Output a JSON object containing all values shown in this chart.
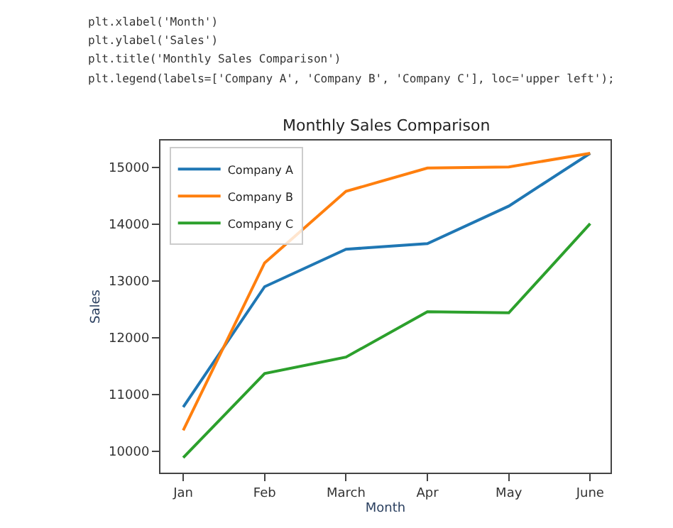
{
  "chart_data": {
    "type": "line",
    "title": "Monthly Sales Comparison",
    "xlabel": "Month",
    "ylabel": "Sales",
    "categories": [
      "Jan",
      "Feb",
      "March",
      "Apr",
      "May",
      "June"
    ],
    "series": [
      {
        "name": "Company A",
        "color": "#1f77b4",
        "values": [
          10780,
          12900,
          13560,
          13660,
          14320,
          15250
        ]
      },
      {
        "name": "Company B",
        "color": "#ff7f0e",
        "values": [
          10370,
          13320,
          14580,
          14990,
          15010,
          15250
        ]
      },
      {
        "name": "Company C",
        "color": "#2ca02c",
        "values": [
          9890,
          11370,
          11660,
          12460,
          12440,
          14010
        ]
      }
    ],
    "ylim": [
      9625,
      15475
    ],
    "yticks": [
      10000,
      11000,
      12000,
      13000,
      14000,
      15000
    ],
    "legend": "top left",
    "marker": "none",
    "line_style": "solid",
    "annotations": [
      "plt.xlabel('Month')",
      "plt.ylabel('Sales')",
      "plt.title('Monthly Sales Comparison')",
      "plt.legend(labels=['Company A', 'Company B', 'Company C'], loc='upper left');"
    ]
  }
}
